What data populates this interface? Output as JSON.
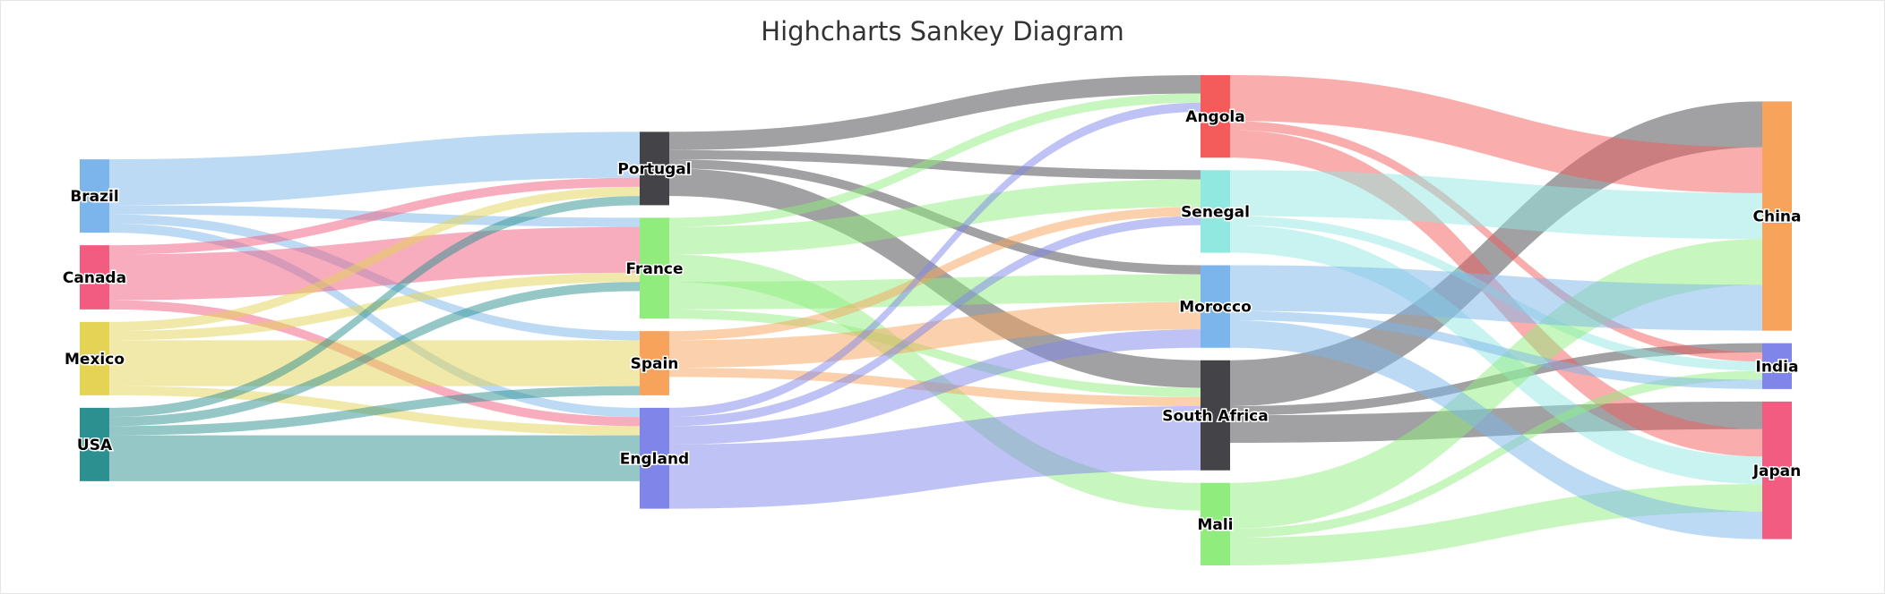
{
  "title": "Highcharts Sankey Diagram",
  "chart_data": {
    "type": "sankey",
    "title": "Highcharts Sankey Diagram",
    "nodes": [
      {
        "id": "Brazil",
        "column": 0,
        "color": "#7cb5ec"
      },
      {
        "id": "Canada",
        "column": 0,
        "color": "#f15c80"
      },
      {
        "id": "Mexico",
        "column": 0,
        "color": "#e4d354"
      },
      {
        "id": "USA",
        "column": 0,
        "color": "#2b908f"
      },
      {
        "id": "Portugal",
        "column": 1,
        "color": "#434348"
      },
      {
        "id": "France",
        "column": 1,
        "color": "#90ed7d"
      },
      {
        "id": "Spain",
        "column": 1,
        "color": "#f7a35c"
      },
      {
        "id": "England",
        "column": 1,
        "color": "#8085e9"
      },
      {
        "id": "Angola",
        "column": 2,
        "color": "#f45b5b"
      },
      {
        "id": "Senegal",
        "column": 2,
        "color": "#91e8e1"
      },
      {
        "id": "Morocco",
        "column": 2,
        "color": "#7cb5ec"
      },
      {
        "id": "South Africa",
        "column": 2,
        "color": "#434348"
      },
      {
        "id": "Mali",
        "column": 2,
        "color": "#90ed7d"
      },
      {
        "id": "China",
        "column": 3,
        "color": "#f7a35c"
      },
      {
        "id": "India",
        "column": 3,
        "color": "#8085e9"
      },
      {
        "id": "Japan",
        "column": 3,
        "color": "#f15c80"
      }
    ],
    "links": [
      {
        "from": "Brazil",
        "to": "Portugal",
        "weight": 5
      },
      {
        "from": "Brazil",
        "to": "France",
        "weight": 1
      },
      {
        "from": "Brazil",
        "to": "Spain",
        "weight": 1
      },
      {
        "from": "Brazil",
        "to": "England",
        "weight": 1
      },
      {
        "from": "Canada",
        "to": "Portugal",
        "weight": 1
      },
      {
        "from": "Canada",
        "to": "France",
        "weight": 5
      },
      {
        "from": "Canada",
        "to": "England",
        "weight": 1
      },
      {
        "from": "Mexico",
        "to": "Portugal",
        "weight": 1
      },
      {
        "from": "Mexico",
        "to": "France",
        "weight": 1
      },
      {
        "from": "Mexico",
        "to": "Spain",
        "weight": 5
      },
      {
        "from": "Mexico",
        "to": "England",
        "weight": 1
      },
      {
        "from": "USA",
        "to": "Portugal",
        "weight": 1
      },
      {
        "from": "USA",
        "to": "France",
        "weight": 1
      },
      {
        "from": "USA",
        "to": "Spain",
        "weight": 1
      },
      {
        "from": "USA",
        "to": "England",
        "weight": 5
      },
      {
        "from": "Portugal",
        "to": "Angola",
        "weight": 2
      },
      {
        "from": "Portugal",
        "to": "Senegal",
        "weight": 1
      },
      {
        "from": "Portugal",
        "to": "Morocco",
        "weight": 1
      },
      {
        "from": "Portugal",
        "to": "South Africa",
        "weight": 3
      },
      {
        "from": "France",
        "to": "Angola",
        "weight": 1
      },
      {
        "from": "France",
        "to": "Senegal",
        "weight": 3
      },
      {
        "from": "France",
        "to": "Mali",
        "weight": 3
      },
      {
        "from": "France",
        "to": "Morocco",
        "weight": 3
      },
      {
        "from": "France",
        "to": "South Africa",
        "weight": 1
      },
      {
        "from": "Spain",
        "to": "Senegal",
        "weight": 1
      },
      {
        "from": "Spain",
        "to": "Morocco",
        "weight": 3
      },
      {
        "from": "Spain",
        "to": "South Africa",
        "weight": 1
      },
      {
        "from": "England",
        "to": "Angola",
        "weight": 1
      },
      {
        "from": "England",
        "to": "Senegal",
        "weight": 1
      },
      {
        "from": "England",
        "to": "Morocco",
        "weight": 2
      },
      {
        "from": "England",
        "to": "South Africa",
        "weight": 7
      },
      {
        "from": "South Africa",
        "to": "China",
        "weight": 5
      },
      {
        "from": "South Africa",
        "to": "India",
        "weight": 1
      },
      {
        "from": "South Africa",
        "to": "Japan",
        "weight": 3
      },
      {
        "from": "Angola",
        "to": "China",
        "weight": 5
      },
      {
        "from": "Angola",
        "to": "India",
        "weight": 1
      },
      {
        "from": "Angola",
        "to": "Japan",
        "weight": 3
      },
      {
        "from": "Senegal",
        "to": "China",
        "weight": 5
      },
      {
        "from": "Senegal",
        "to": "India",
        "weight": 1
      },
      {
        "from": "Senegal",
        "to": "Japan",
        "weight": 3
      },
      {
        "from": "Mali",
        "to": "China",
        "weight": 5
      },
      {
        "from": "Mali",
        "to": "India",
        "weight": 1
      },
      {
        "from": "Mali",
        "to": "Japan",
        "weight": 3
      },
      {
        "from": "Morocco",
        "to": "China",
        "weight": 5
      },
      {
        "from": "Morocco",
        "to": "India",
        "weight": 1
      },
      {
        "from": "Morocco",
        "to": "Japan",
        "weight": 3
      }
    ]
  }
}
